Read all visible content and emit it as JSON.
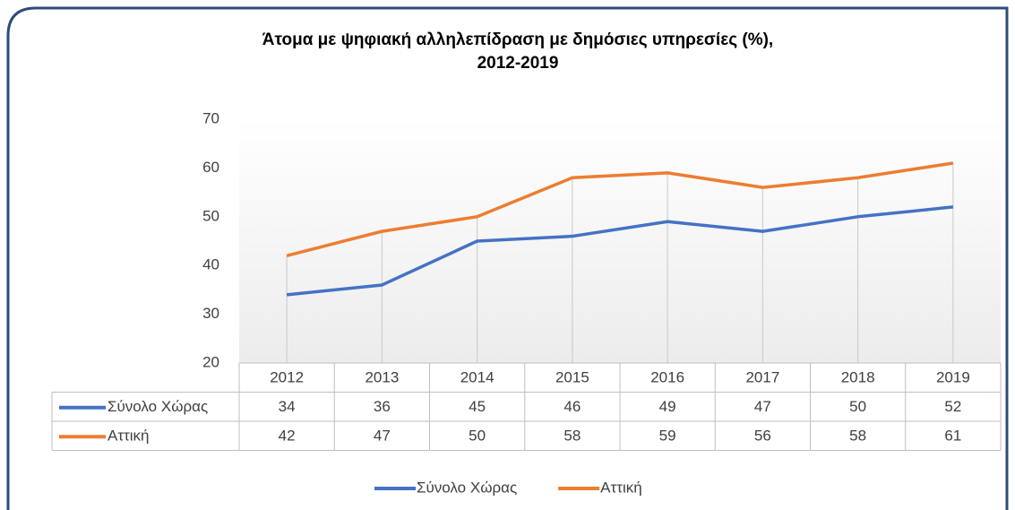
{
  "chart_data": {
    "type": "line",
    "title": [
      "Άτομα με ψηφιακή αλληλεπίδραση με δημόσιες υπηρεσίες (%),",
      "2012-2019"
    ],
    "categories": [
      "2012",
      "2013",
      "2014",
      "2015",
      "2016",
      "2017",
      "2018",
      "2019"
    ],
    "series": [
      {
        "name": "Σύνολο Χώρας",
        "color": "#4472c4",
        "values": [
          34,
          36,
          45,
          46,
          49,
          47,
          50,
          52
        ]
      },
      {
        "name": "Αττική",
        "color": "#ed7d31",
        "values": [
          42,
          47,
          50,
          58,
          59,
          56,
          58,
          61
        ]
      }
    ],
    "ylim": [
      20,
      70
    ],
    "yticks": [
      20,
      30,
      40,
      50,
      60,
      70
    ],
    "grid": false,
    "legend": "bottom"
  }
}
